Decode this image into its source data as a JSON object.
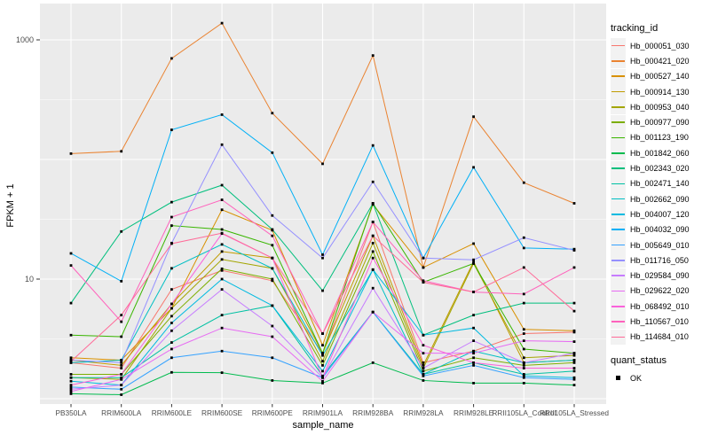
{
  "chart_data": {
    "type": "line",
    "title": "",
    "xlabel": "sample_name",
    "ylabel": "FPKM + 1",
    "y_scale": "log10",
    "ylim": [
      1,
      2000
    ],
    "y_tick_values": [
      10,
      1000
    ],
    "y_tick_labels": [
      "10",
      "1000"
    ],
    "gridlines": {
      "major_values": [
        1,
        10,
        100,
        1000
      ],
      "minor_values": [
        3.162,
        31.62,
        316.2
      ],
      "color": "#FFFFFF"
    },
    "panel_background": "#EBEBEB",
    "point_color": "#000000",
    "categories": [
      "PB350LA",
      "RRIM600LA",
      "RRIM600LE",
      "RRIM600SE",
      "RRIM600PE",
      "RRIM901LA",
      "RRIM928BA",
      "RRIM928LA",
      "RRIM928LE",
      "RRII105LA_Control",
      "RRII105LA_Stressed"
    ],
    "legend": {
      "title": "tracking_id",
      "position": "right"
    },
    "quant_status": {
      "title": "quant_status",
      "entries": [
        "OK"
      ]
    },
    "series": [
      {
        "name": "Hb_000051_030",
        "color": "#F8766D",
        "values": [
          2.0,
          1.8,
          8.2,
          11.8,
          9.7,
          2.4,
          30,
          2.0,
          2.5,
          3.5,
          3.6
        ]
      },
      {
        "name": "Hb_000421_020",
        "color": "#EA8331",
        "values": [
          112,
          117,
          700,
          1380,
          244,
          92,
          740,
          12.5,
          228,
          64,
          43
        ]
      },
      {
        "name": "Hb_000527_140",
        "color": "#D89000",
        "values": [
          2.2,
          2.1,
          5.7,
          38,
          25.6,
          2.8,
          42,
          12.5,
          19.8,
          3.8,
          3.7
        ]
      },
      {
        "name": "Hb_000914_130",
        "color": "#C09B00",
        "values": [
          2.1,
          1.9,
          6.2,
          17,
          15,
          2.4,
          23,
          1.9,
          14,
          2.0,
          2.1
        ]
      },
      {
        "name": "Hb_000953_040",
        "color": "#A3A500",
        "values": [
          1.5,
          1.45,
          5.7,
          14.6,
          12.3,
          2.06,
          20,
          1.8,
          13.5,
          2.2,
          2.3
        ]
      },
      {
        "name": "Hb_000977_090",
        "color": "#7CAE00",
        "values": [
          1.6,
          1.6,
          4.9,
          12.2,
          10,
          1.9,
          17,
          1.7,
          2.2,
          1.9,
          2.0
        ]
      },
      {
        "name": "Hb_001123_190",
        "color": "#39B600",
        "values": [
          3.4,
          3.3,
          28,
          26,
          19.2,
          2.4,
          43,
          9.4,
          13.5,
          2.6,
          2.4
        ]
      },
      {
        "name": "Hb_001842_060",
        "color": "#00BB4E",
        "values": [
          1.1,
          1.08,
          1.66,
          1.65,
          1.42,
          1.35,
          2.0,
          1.42,
          1.35,
          1.35,
          1.3
        ]
      },
      {
        "name": "Hb_002343_020",
        "color": "#00BF7D",
        "values": [
          6.3,
          25,
          44,
          61,
          26,
          8.0,
          43,
          3.4,
          5.0,
          6.3,
          6.3
        ]
      },
      {
        "name": "Hb_002471_140",
        "color": "#00C1A3",
        "values": [
          1.5,
          1.5,
          2.95,
          5.0,
          6.0,
          1.55,
          5.3,
          1.6,
          2.0,
          1.6,
          1.7
        ]
      },
      {
        "name": "Hb_002662_090",
        "color": "#00BFC4",
        "values": [
          2.0,
          2.1,
          12.3,
          19.5,
          12.3,
          2.3,
          12,
          1.6,
          2.5,
          2.0,
          2.1
        ]
      },
      {
        "name": "Hb_004007_120",
        "color": "#00BAE0",
        "values": [
          1.4,
          1.3,
          4.3,
          10,
          6.0,
          1.7,
          12,
          3.4,
          3.9,
          1.55,
          1.5
        ]
      },
      {
        "name": "Hb_004032_090",
        "color": "#00B0F6",
        "values": [
          16.4,
          9.6,
          177,
          237,
          114,
          16,
          131,
          15,
          86,
          18.2,
          17.8
        ]
      },
      {
        "name": "Hb_005649_010",
        "color": "#35A2FF",
        "values": [
          1.25,
          1.2,
          2.2,
          2.5,
          2.2,
          1.5,
          5.3,
          1.55,
          1.9,
          1.5,
          1.45
        ]
      },
      {
        "name": "Hb_011716_050",
        "color": "#9590FF",
        "values": [
          2.1,
          2.0,
          20,
          133,
          34,
          15,
          65,
          15,
          14.5,
          22.2,
          17.4
        ]
      },
      {
        "name": "Hb_029584_090",
        "color": "#C77CFF",
        "values": [
          1.2,
          1.3,
          3.7,
          8.2,
          4.05,
          1.5,
          8.4,
          1.8,
          3.05,
          2.0,
          2.4
        ]
      },
      {
        "name": "Hb_029622_020",
        "color": "#E76BF3",
        "values": [
          1.15,
          1.45,
          2.6,
          3.9,
          3.3,
          1.4,
          5.3,
          2.4,
          2.4,
          3.05,
          3.0
        ]
      },
      {
        "name": "Hb_068492_010",
        "color": "#FA62DB",
        "values": [
          1.3,
          1.6,
          6.2,
          24,
          15,
          1.5,
          15,
          2.8,
          2.0,
          1.8,
          1.8
        ]
      },
      {
        "name": "Hb_110567_010",
        "color": "#FF62BC",
        "values": [
          13,
          4.4,
          33,
          46,
          23,
          3.5,
          30,
          9.7,
          7.8,
          7.5,
          12.5
        ]
      },
      {
        "name": "Hb_114684_010",
        "color": "#FF6A98",
        "values": [
          2.05,
          5.0,
          19.8,
          24.2,
          15,
          3.5,
          23,
          9.4,
          7.8,
          12.5,
          5.4
        ]
      }
    ]
  }
}
